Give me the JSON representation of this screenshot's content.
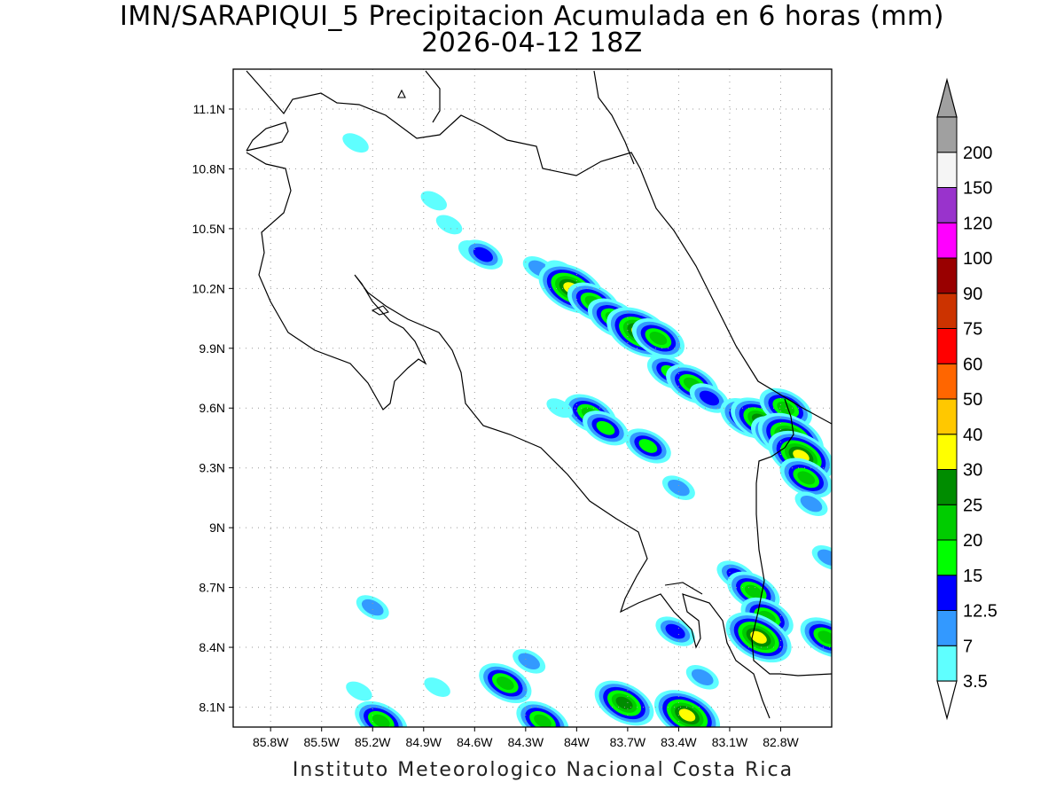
{
  "title_line1": "IMN/SARAPIQUI_5 Precipitacion Acumulada en 6 horas (mm)",
  "title_line2": "2026-04-12 18Z",
  "footer": "Instituto Meteorologico Nacional Costa Rica",
  "map": {
    "lon_range": [
      -86.02,
      -82.5
    ],
    "lat_range": [
      8.0,
      11.3
    ],
    "lon_ticks": [
      {
        "value": -85.8,
        "label": "85.8W"
      },
      {
        "value": -85.5,
        "label": "85.5W"
      },
      {
        "value": -85.2,
        "label": "85.2W"
      },
      {
        "value": -84.9,
        "label": "84.9W"
      },
      {
        "value": -84.6,
        "label": "84.6W"
      },
      {
        "value": -84.3,
        "label": "84.3W"
      },
      {
        "value": -84.0,
        "label": "84W"
      },
      {
        "value": -83.7,
        "label": "83.7W"
      },
      {
        "value": -83.4,
        "label": "83.4W"
      },
      {
        "value": -83.1,
        "label": "83.1W"
      },
      {
        "value": -82.8,
        "label": "82.8W"
      }
    ],
    "lat_ticks": [
      {
        "value": 11.1,
        "label": "11.1N"
      },
      {
        "value": 10.8,
        "label": "10.8N"
      },
      {
        "value": 10.5,
        "label": "10.5N"
      },
      {
        "value": 10.2,
        "label": "10.2N"
      },
      {
        "value": 9.9,
        "label": "9.9N"
      },
      {
        "value": 9.6,
        "label": "9.6N"
      },
      {
        "value": 9.3,
        "label": "9.3N"
      },
      {
        "value": 9.0,
        "label": "9N"
      },
      {
        "value": 8.7,
        "label": "8.7N"
      },
      {
        "value": 8.4,
        "label": "8.4N"
      },
      {
        "value": 8.1,
        "label": "8.1N"
      }
    ],
    "gridlines": true
  },
  "colorbar": {
    "levels": [
      {
        "label": "3.5",
        "color": "#5fffff"
      },
      {
        "label": "7",
        "color": "#3399ff"
      },
      {
        "label": "12.5",
        "color": "#0000ff"
      },
      {
        "label": "15",
        "color": "#00ff00"
      },
      {
        "label": "20",
        "color": "#00cc00"
      },
      {
        "label": "25",
        "color": "#008c00"
      },
      {
        "label": "30",
        "color": "#ffff00"
      },
      {
        "label": "40",
        "color": "#ffc800"
      },
      {
        "label": "50",
        "color": "#ff6600"
      },
      {
        "label": "60",
        "color": "#ff0000"
      },
      {
        "label": "75",
        "color": "#cc3300"
      },
      {
        "label": "90",
        "color": "#990000"
      },
      {
        "label": "100",
        "color": "#ff00ff"
      },
      {
        "label": "120",
        "color": "#9933cc"
      },
      {
        "label": "150",
        "color": "#f5f5f5"
      },
      {
        "label": "200",
        "color": "#a0a0a0"
      }
    ],
    "under_color": "#ffffff",
    "over_color": "#a0a0a0"
  },
  "rain_cells": [
    {
      "lon": -84.6,
      "lat": 10.38,
      "level": 1
    },
    {
      "lon": -84.55,
      "lat": 10.37,
      "level": 2
    },
    {
      "lon": -84.75,
      "lat": 10.52,
      "level": 0
    },
    {
      "lon": -84.84,
      "lat": 10.64,
      "level": 0
    },
    {
      "lon": -85.3,
      "lat": 10.93,
      "level": 0
    },
    {
      "lon": -84.22,
      "lat": 10.3,
      "level": 1
    },
    {
      "lon": -84.09,
      "lat": 10.28,
      "level": 1
    },
    {
      "lon": -84.03,
      "lat": 10.2,
      "level": 6
    },
    {
      "lon": -83.9,
      "lat": 10.13,
      "level": 4
    },
    {
      "lon": -83.78,
      "lat": 10.05,
      "level": 4
    },
    {
      "lon": -83.63,
      "lat": 9.98,
      "level": 6
    },
    {
      "lon": -83.52,
      "lat": 9.95,
      "level": 4
    },
    {
      "lon": -83.45,
      "lat": 9.78,
      "level": 3
    },
    {
      "lon": -83.32,
      "lat": 9.72,
      "level": 4
    },
    {
      "lon": -83.22,
      "lat": 9.65,
      "level": 2
    },
    {
      "lon": -83.0,
      "lat": 9.55,
      "level": 4
    },
    {
      "lon": -82.92,
      "lat": 9.54,
      "level": 5
    },
    {
      "lon": -82.82,
      "lat": 9.46,
      "level": 4
    },
    {
      "lon": -82.77,
      "lat": 9.6,
      "level": 4
    },
    {
      "lon": -82.74,
      "lat": 9.45,
      "level": 6
    },
    {
      "lon": -82.68,
      "lat": 9.36,
      "level": 6
    },
    {
      "lon": -82.65,
      "lat": 9.25,
      "level": 4
    },
    {
      "lon": -82.62,
      "lat": 9.12,
      "level": 1
    },
    {
      "lon": -83.92,
      "lat": 9.57,
      "level": 4
    },
    {
      "lon": -83.83,
      "lat": 9.5,
      "level": 3
    },
    {
      "lon": -83.58,
      "lat": 9.41,
      "level": 3
    },
    {
      "lon": -83.4,
      "lat": 9.2,
      "level": 1
    },
    {
      "lon": -82.52,
      "lat": 8.85,
      "level": 1
    },
    {
      "lon": -83.06,
      "lat": 8.76,
      "level": 2
    },
    {
      "lon": -82.96,
      "lat": 8.68,
      "level": 4
    },
    {
      "lon": -82.88,
      "lat": 8.55,
      "level": 4
    },
    {
      "lon": -82.93,
      "lat": 8.45,
      "level": 6
    },
    {
      "lon": -82.53,
      "lat": 8.45,
      "level": 4
    },
    {
      "lon": -83.72,
      "lat": 8.12,
      "level": 5
    },
    {
      "lon": -83.35,
      "lat": 8.06,
      "level": 6
    },
    {
      "lon": -83.26,
      "lat": 8.25,
      "level": 1
    },
    {
      "lon": -83.42,
      "lat": 8.48,
      "level": 2
    },
    {
      "lon": -84.42,
      "lat": 8.22,
      "level": 4
    },
    {
      "lon": -84.28,
      "lat": 8.33,
      "level": 1
    },
    {
      "lon": -85.2,
      "lat": 8.6,
      "level": 1
    },
    {
      "lon": -85.28,
      "lat": 8.18,
      "level": 0
    },
    {
      "lon": -84.82,
      "lat": 8.2,
      "level": 0
    },
    {
      "lon": -85.15,
      "lat": 8.03,
      "level": 4
    },
    {
      "lon": -84.2,
      "lat": 8.03,
      "level": 4
    },
    {
      "lon": -84.1,
      "lat": 9.6,
      "level": 0
    }
  ]
}
